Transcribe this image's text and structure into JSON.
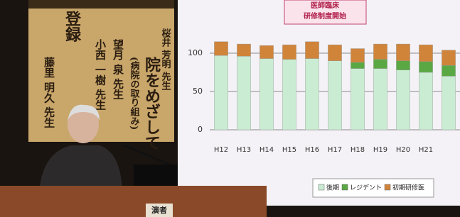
{
  "banner": {
    "title": "院をめざして",
    "subtitle": "(病院の取り組み)",
    "header": "登録",
    "speakers": [
      "桜井 芳明 先生",
      "小西 一樹 先生",
      "望月 泉 先生",
      "藤里 明久 先生"
    ]
  },
  "podium": "演者",
  "chart_data": {
    "type": "bar",
    "stacked": true,
    "annotation": [
      "医師臨床",
      "研修制度開始"
    ],
    "categories": [
      "H12",
      "H13",
      "H14",
      "H15",
      "H16",
      "H17",
      "H18",
      "H19",
      "H20",
      "H21",
      null
    ],
    "series": [
      {
        "name": "後期",
        "color": "#c9ecd2",
        "values": [
          97,
          96,
          93,
          92,
          93,
          90,
          80,
          80,
          78,
          75,
          70
        ]
      },
      {
        "name": "レジデント",
        "color": "#5aa844",
        "values": [
          0,
          0,
          0,
          0,
          0,
          0,
          8,
          12,
          12,
          14,
          14
        ]
      },
      {
        "name": "初期研修医",
        "color": "#d0843a",
        "values": [
          18,
          16,
          17,
          19,
          22,
          21,
          18,
          20,
          22,
          22,
          20
        ]
      }
    ],
    "ylim": [
      0,
      150
    ],
    "yticks": [
      0,
      50,
      100
    ],
    "grid": true
  }
}
